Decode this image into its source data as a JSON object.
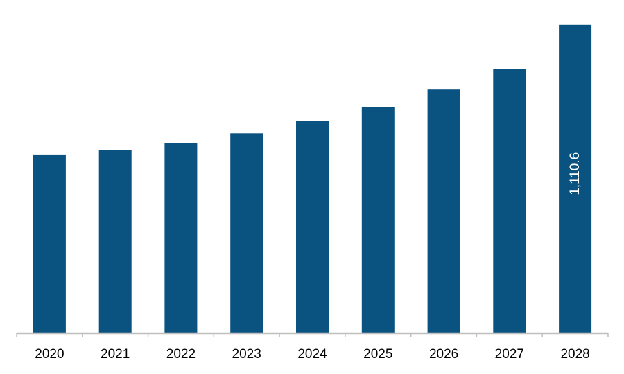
{
  "chart_data": {
    "type": "bar",
    "title": "",
    "xlabel": "",
    "ylabel": "",
    "categories": [
      "2020",
      "2021",
      "2022",
      "2023",
      "2024",
      "2025",
      "2026",
      "2027",
      "2028"
    ],
    "values": [
      641.3,
      660.5,
      686.0,
      720.2,
      763.6,
      815.6,
      877.7,
      951.8,
      1110.6
    ],
    "ylim": [
      0,
      1150
    ],
    "grid": false,
    "legend": "none",
    "data_labels": [
      {
        "category": "2028",
        "text": "1,110.6"
      }
    ],
    "bar_color": "#0a527f",
    "axis_color": "#bfbfbf"
  }
}
